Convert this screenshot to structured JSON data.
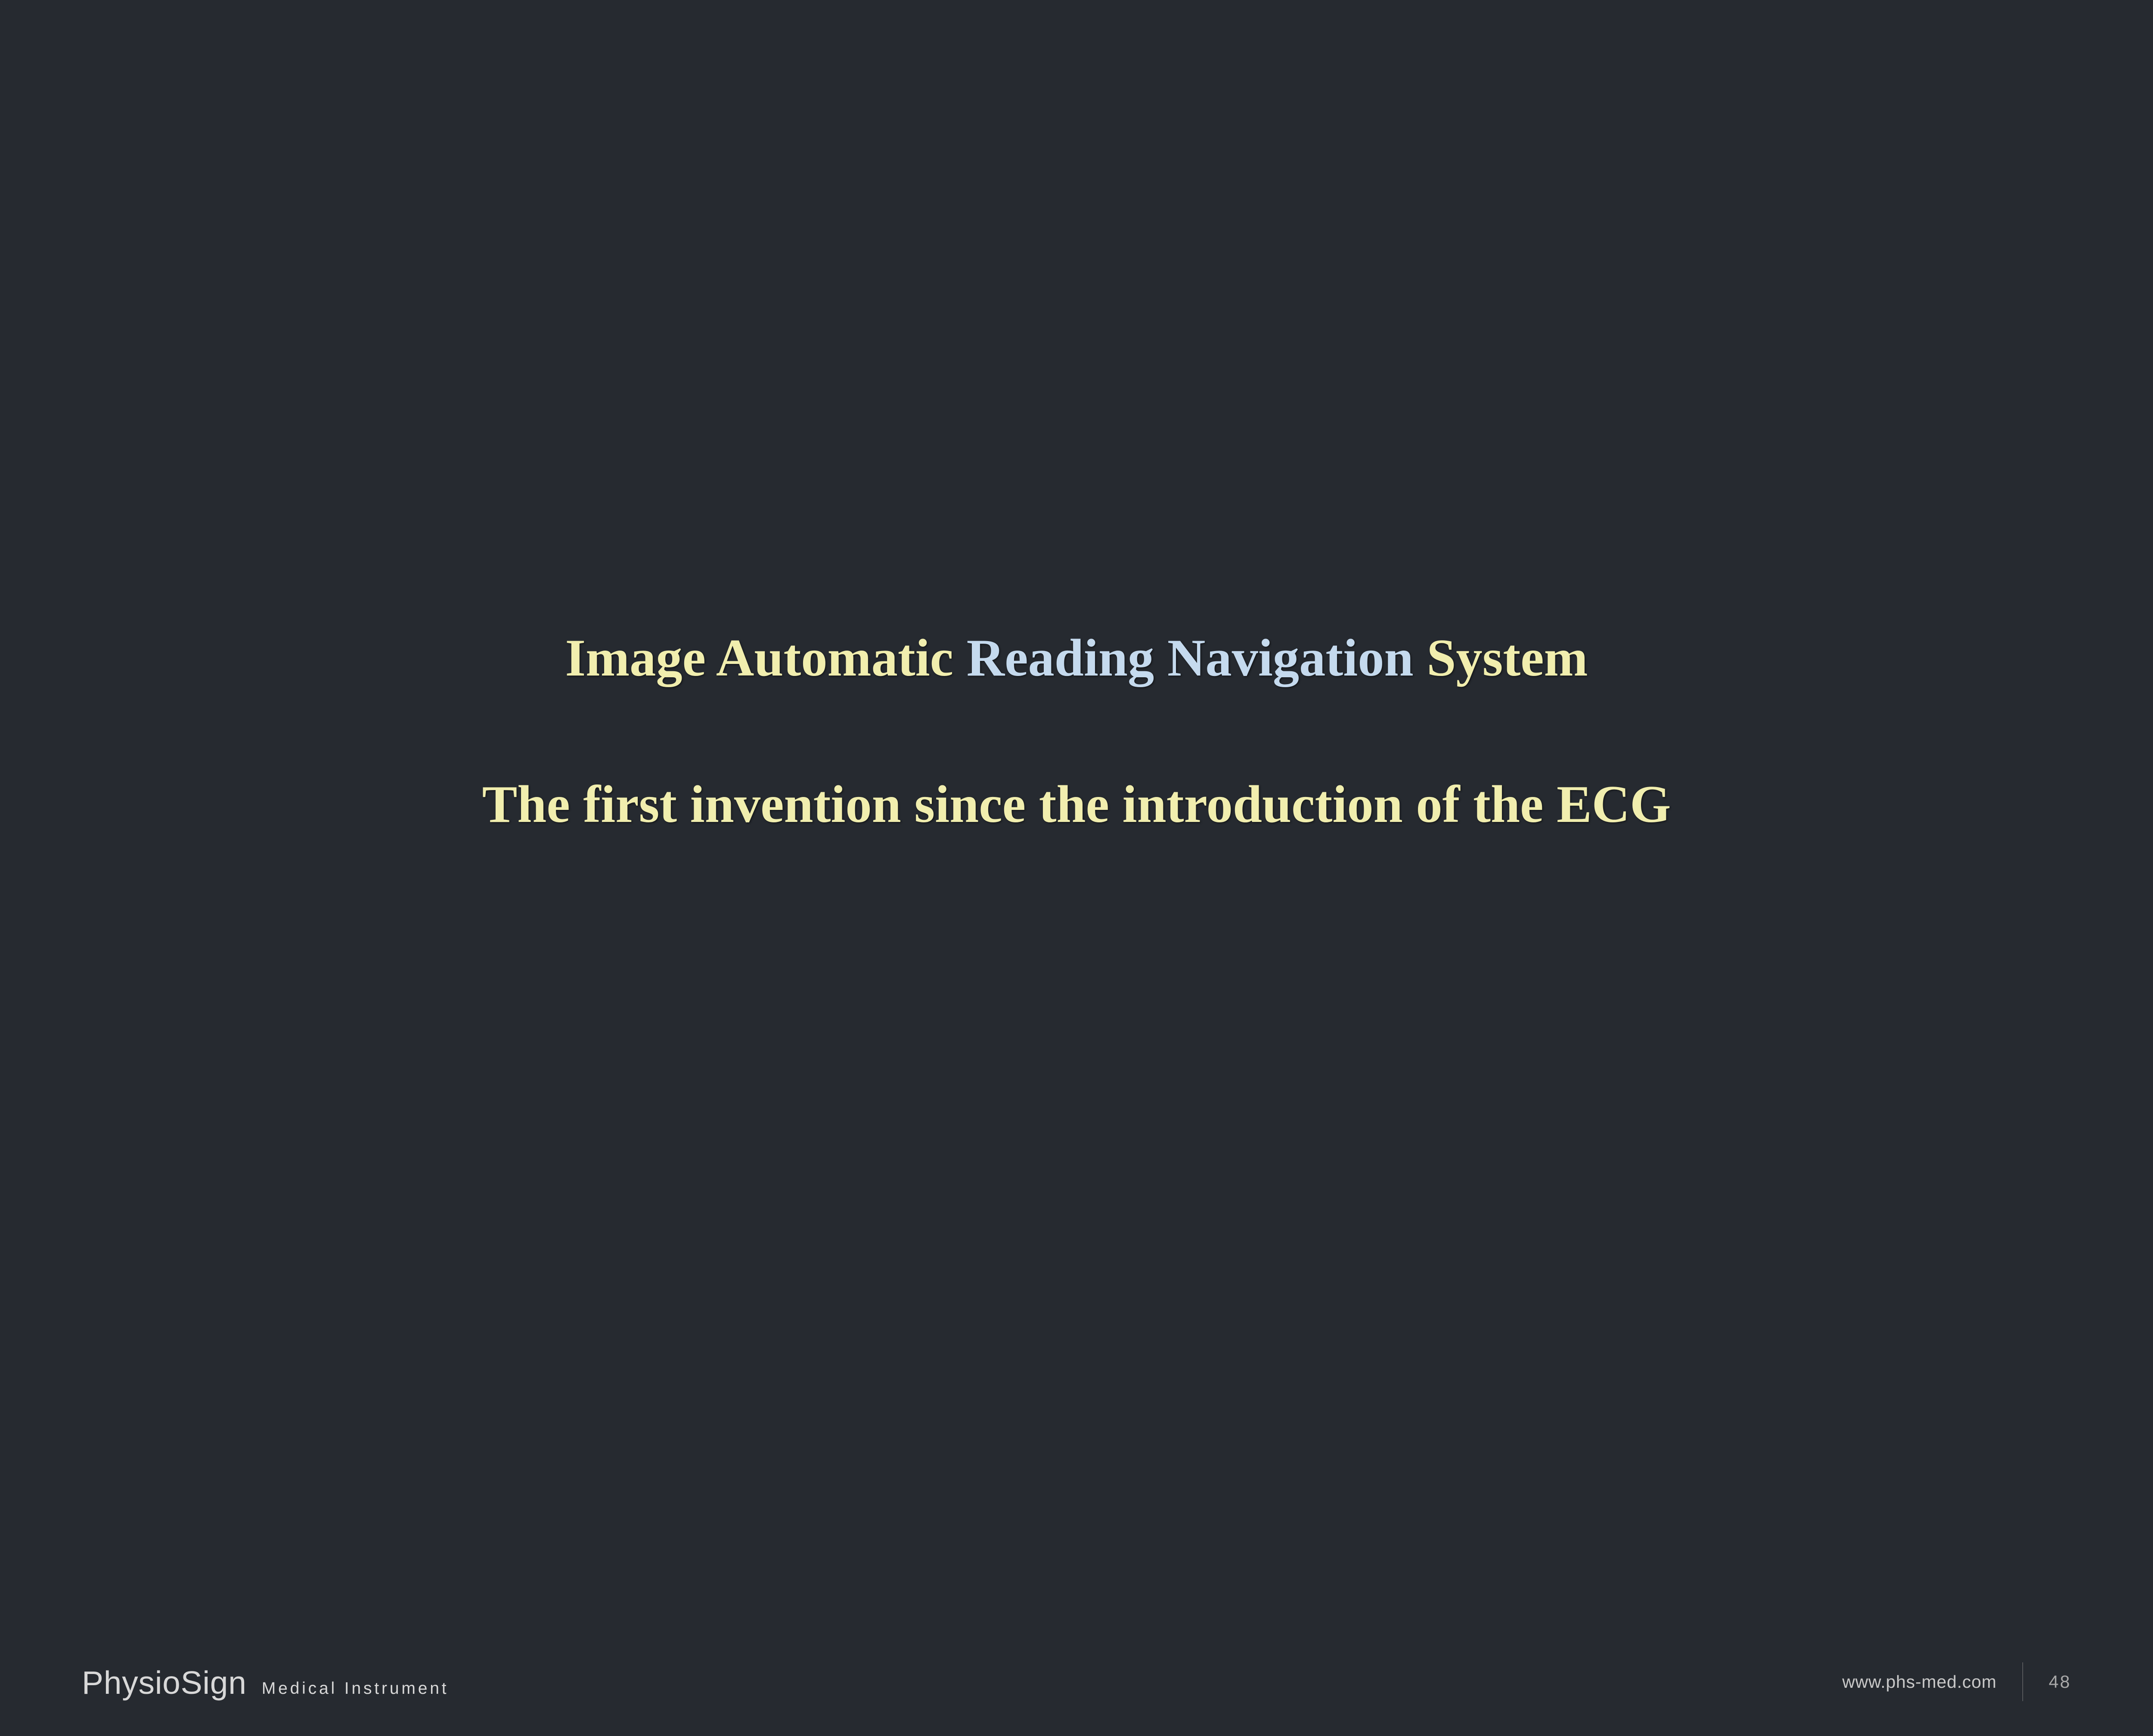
{
  "slide": {
    "title_part1": "Image Automatic ",
    "title_part2": "Reading Navigation",
    "title_part3": " System",
    "subtitle": "The first invention since the introduction of the ECG",
    "background_color": "#262a30",
    "yellow_color": "#f1eeae",
    "blue_color": "#c5daee",
    "title_fontsize_vw": 2.45,
    "font_family": "Georgia, 'Times New Roman', Times, serif"
  },
  "footer": {
    "brand": "PhysioSign",
    "brand_sub": "Medical  Instrument",
    "url": "www.phs-med.com",
    "page_number": "48",
    "text_color": "#d8d8d8",
    "divider_color": "#808080",
    "font_family": "Arial, Helvetica, sans-serif"
  }
}
